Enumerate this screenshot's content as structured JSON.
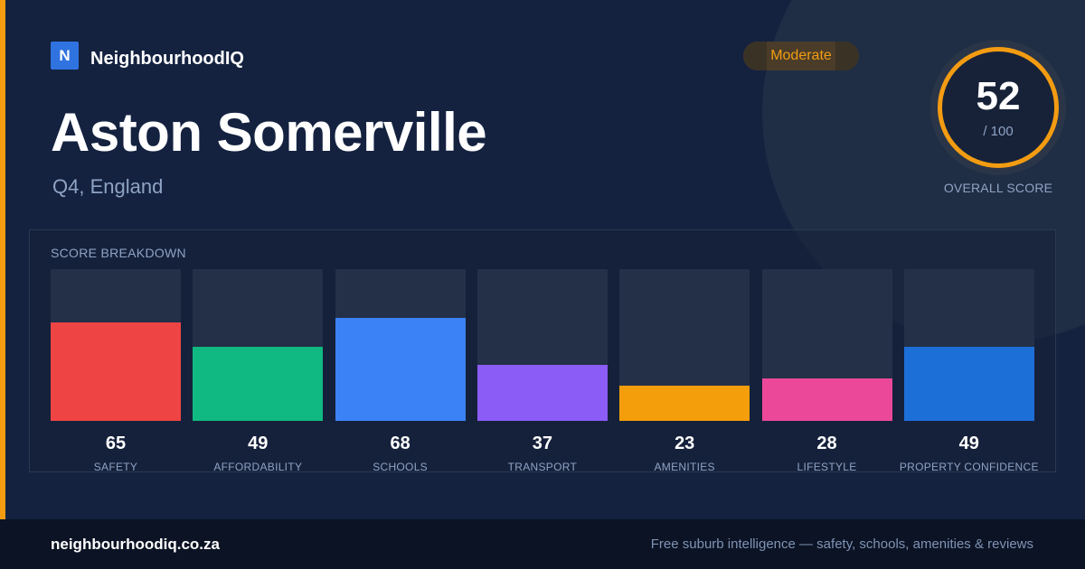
{
  "brand": {
    "logo_letter": "N",
    "name": "NeighbourhoodIQ"
  },
  "area": {
    "name": "Aston Somerville",
    "location": "Q4, England"
  },
  "rating": {
    "label": "Moderate",
    "color": "#f39c12"
  },
  "overall_score": {
    "value": "52",
    "max": "/ 100",
    "label": "OVERALL SCORE"
  },
  "breakdown": {
    "title": "SCORE BREAKDOWN"
  },
  "chart_data": {
    "type": "bar",
    "categories": [
      "SAFETY",
      "AFFORDABILITY",
      "SCHOOLS",
      "TRANSPORT",
      "AMENITIES",
      "LIFESTYLE",
      "PROPERTY CONFIDENCE"
    ],
    "values": [
      65,
      49,
      68,
      37,
      23,
      28,
      49
    ],
    "colors": [
      "#ef4444",
      "#10b981",
      "#3b82f6",
      "#8b5cf6",
      "#f59e0b",
      "#ec4899",
      "#1d6fd8"
    ],
    "ylim": [
      0,
      100
    ]
  },
  "footer": {
    "domain": "neighbourhoodiq.co.za",
    "tagline": "Free suburb intelligence — safety, schools, amenities & reviews"
  }
}
